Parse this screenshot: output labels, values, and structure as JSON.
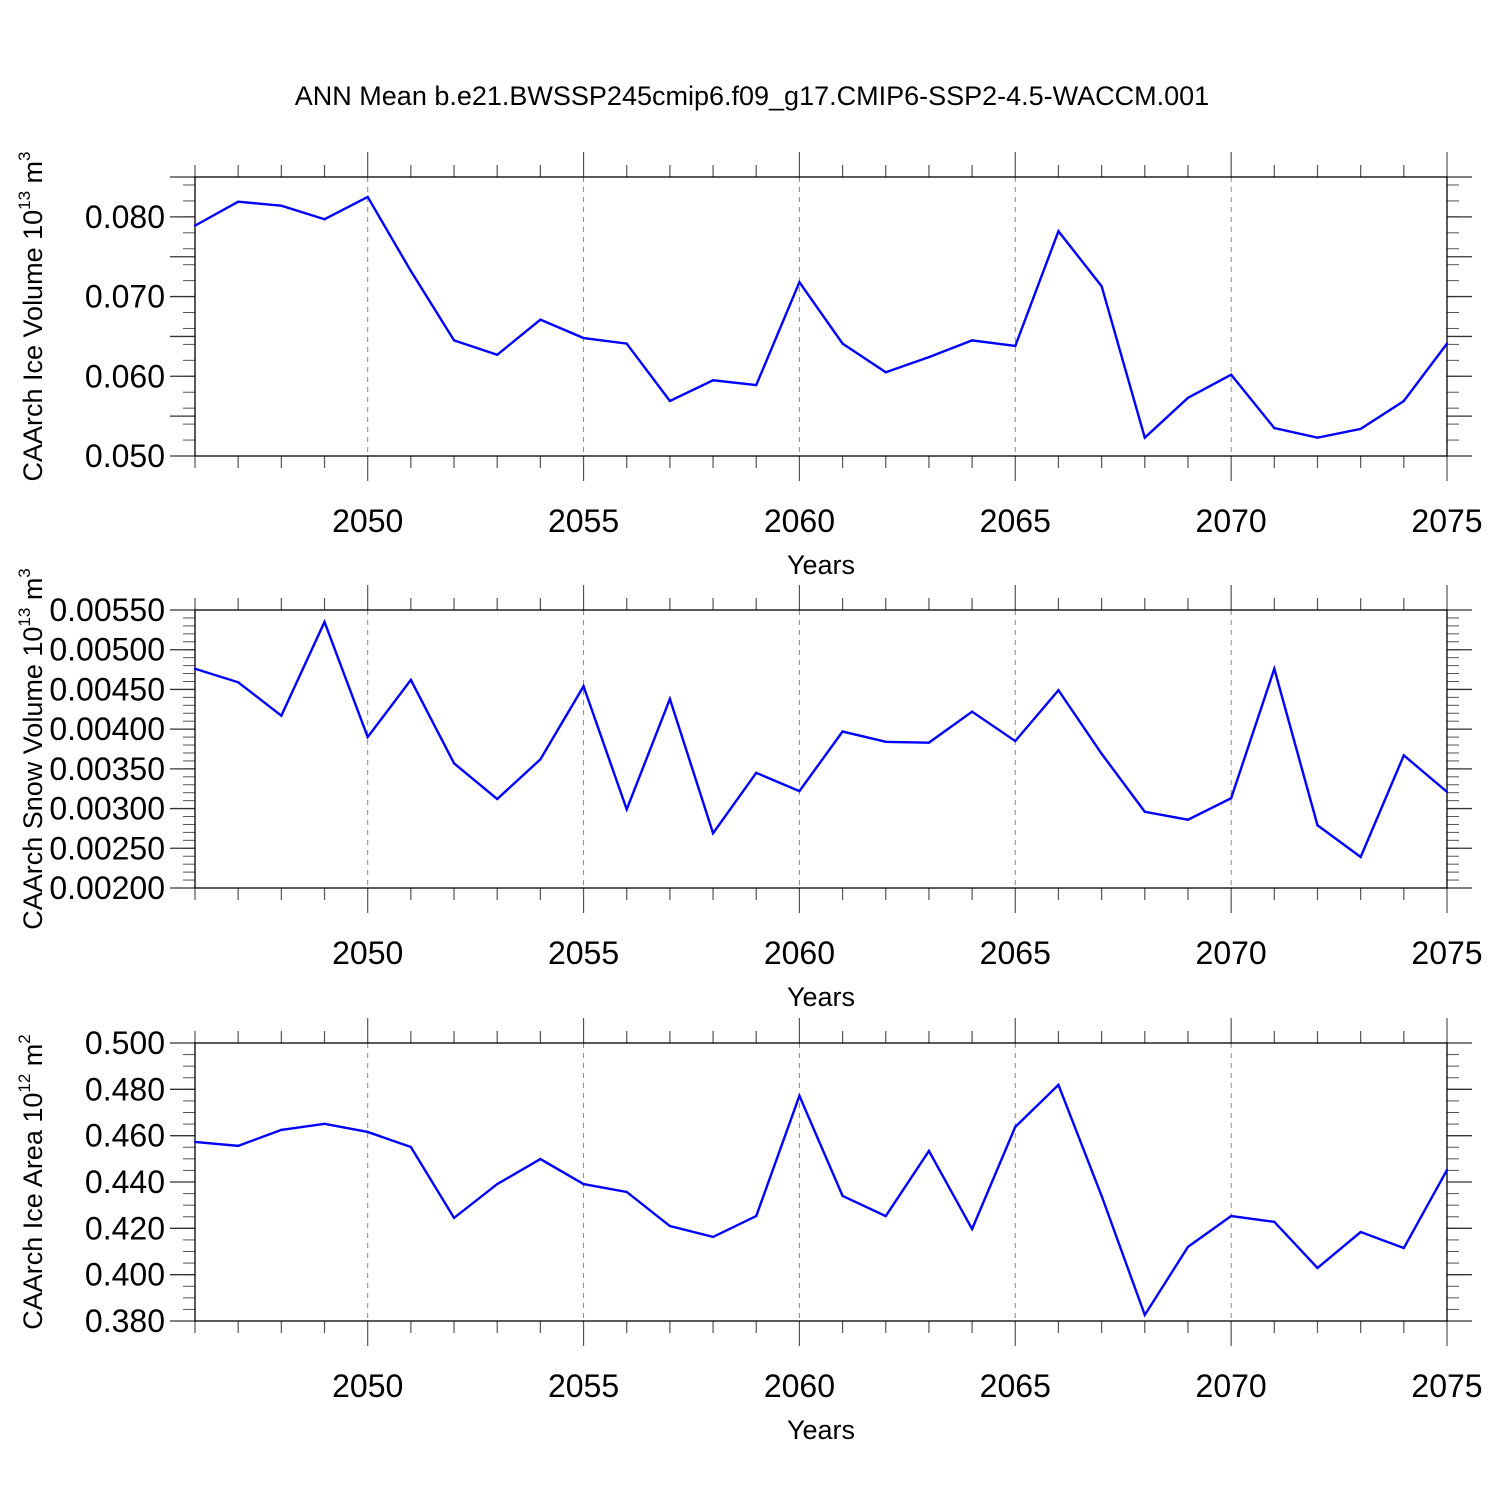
{
  "title": "ANN Mean b.e21.BWSSP245cmip6.f09_g17.CMIP6-SSP2-4.5-WACCM.001",
  "colors": {
    "line": "#0000ff",
    "axis": "#000000",
    "grid": "#888888"
  },
  "chart_data": [
    {
      "type": "line",
      "ylabel": "CAArch Ice Volume 10",
      "ylabel_exp": "13",
      "ylabel_unit": " m",
      "ylabel_unit_exp": "3",
      "xlabel": "Years",
      "xlim": [
        2046,
        2075
      ],
      "ylim": [
        0.05,
        0.085
      ],
      "xticks": [
        "2050",
        "2055",
        "2060",
        "2065",
        "2070",
        "2075"
      ],
      "yticks": [
        "0.050",
        "0.060",
        "0.070",
        "0.080"
      ],
      "grid": "dashed vertical at major x ticks",
      "x": [
        2046,
        2047,
        2048,
        2049,
        2050,
        2051,
        2052,
        2053,
        2054,
        2055,
        2056,
        2057,
        2058,
        2059,
        2060,
        2061,
        2062,
        2063,
        2064,
        2065,
        2066,
        2067,
        2068,
        2069,
        2070,
        2071,
        2072,
        2073,
        2074,
        2075
      ],
      "values": [
        0.0789,
        0.0819,
        0.0814,
        0.0797,
        0.0825,
        0.0732,
        0.0645,
        0.0627,
        0.0671,
        0.0648,
        0.0641,
        0.0569,
        0.0595,
        0.0589,
        0.0718,
        0.0641,
        0.0605,
        0.0624,
        0.0645,
        0.0638,
        0.0782,
        0.0713,
        0.0523,
        0.0573,
        0.0602,
        0.0535,
        0.0523,
        0.0534,
        0.0569,
        0.0641
      ]
    },
    {
      "type": "line",
      "ylabel": "CAArch Snow Volume 10",
      "ylabel_exp": "13",
      "ylabel_unit": " m",
      "ylabel_unit_exp": "3",
      "xlabel": "Years",
      "xlim": [
        2046,
        2075
      ],
      "ylim": [
        0.002,
        0.0055
      ],
      "xticks": [
        "2050",
        "2055",
        "2060",
        "2065",
        "2070",
        "2075"
      ],
      "yticks": [
        "0.00200",
        "0.00250",
        "0.00300",
        "0.00350",
        "0.00400",
        "0.00450",
        "0.00500",
        "0.00550"
      ],
      "grid": "dashed vertical at major x ticks",
      "x": [
        2046,
        2047,
        2048,
        2049,
        2050,
        2051,
        2052,
        2053,
        2054,
        2055,
        2056,
        2057,
        2058,
        2059,
        2060,
        2061,
        2062,
        2063,
        2064,
        2065,
        2066,
        2067,
        2068,
        2069,
        2070,
        2071,
        2072,
        2073,
        2074,
        2075
      ],
      "values": [
        0.00476,
        0.00459,
        0.00417,
        0.00535,
        0.0039,
        0.00462,
        0.00357,
        0.00312,
        0.00362,
        0.00454,
        0.00299,
        0.00438,
        0.00269,
        0.00345,
        0.00322,
        0.00397,
        0.00384,
        0.00383,
        0.00422,
        0.00385,
        0.00449,
        0.00369,
        0.00296,
        0.00286,
        0.00313,
        0.00476,
        0.00279,
        0.00239,
        0.00367,
        0.00321
      ]
    },
    {
      "type": "line",
      "ylabel": "CAArch Ice Area 10",
      "ylabel_exp": "12",
      "ylabel_unit": " m",
      "ylabel_unit_exp": "2",
      "xlabel": "Years",
      "xlim": [
        2046,
        2075
      ],
      "ylim": [
        0.38,
        0.5
      ],
      "xticks": [
        "2050",
        "2055",
        "2060",
        "2065",
        "2070",
        "2075"
      ],
      "yticks": [
        "0.380",
        "0.400",
        "0.420",
        "0.440",
        "0.460",
        "0.480",
        "0.500"
      ],
      "grid": "dashed vertical at major x ticks",
      "x": [
        2046,
        2047,
        2048,
        2049,
        2050,
        2051,
        2052,
        2053,
        2054,
        2055,
        2056,
        2057,
        2058,
        2059,
        2060,
        2061,
        2062,
        2063,
        2064,
        2065,
        2066,
        2067,
        2068,
        2069,
        2070,
        2071,
        2072,
        2073,
        2074,
        2075
      ],
      "values": [
        0.4573,
        0.4556,
        0.4625,
        0.4651,
        0.4616,
        0.4551,
        0.4245,
        0.4391,
        0.4499,
        0.4391,
        0.4357,
        0.421,
        0.4163,
        0.4253,
        0.4772,
        0.434,
        0.4253,
        0.4534,
        0.4197,
        0.4638,
        0.4819,
        0.434,
        0.3826,
        0.412,
        0.4253,
        0.4228,
        0.4029,
        0.4184,
        0.4115,
        0.4452
      ]
    }
  ]
}
